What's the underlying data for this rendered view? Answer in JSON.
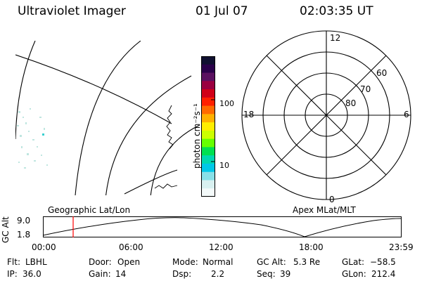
{
  "header": {
    "instrument": "Ultraviolet Imager",
    "date": "01 Jul 07",
    "time": "02:03:35 UT"
  },
  "colorbar": {
    "unit_label": "photon cm⁻²s⁻¹",
    "ticks": [
      {
        "label": "100",
        "value": 100
      },
      {
        "label": "10",
        "value": 10
      }
    ],
    "colors": [
      "#101030",
      "#2a004a",
      "#5a1060",
      "#9a0040",
      "#d00018",
      "#ff2000",
      "#ff6a00",
      "#ffb000",
      "#ffee00",
      "#ccff00",
      "#66ff00",
      "#00e050",
      "#00d8b0",
      "#00c8e8",
      "#88e0e8",
      "#d8f0f0",
      "#f4fafa"
    ]
  },
  "polar_plot": {
    "mlt_labels": {
      "top": "12",
      "right": "6",
      "bottom": "0",
      "left": "18"
    },
    "lat_labels": [
      "60",
      "70",
      "80"
    ]
  },
  "timeline": {
    "left_label": "Geographic Lat/Lon",
    "right_label": "Apex  MLat/MLT",
    "axis_title": "GC Alt",
    "y_max_label": "9.0",
    "y_min_label": "1.8",
    "time_ticks": [
      "00:00",
      "06:00",
      "12:00",
      "18:00",
      "23:59"
    ],
    "marker_color": "#ff0000"
  },
  "status": {
    "flt": {
      "label": "Flt:",
      "value": "LBHL"
    },
    "ip": {
      "label": "IP:",
      "value": "36.0"
    },
    "door": {
      "label": "Door:",
      "value": "Open"
    },
    "gain": {
      "label": "Gain:",
      "value": "14"
    },
    "mode": {
      "label": "Mode:",
      "value": "Normal"
    },
    "dsp": {
      "label": "Dsp:",
      "value": "2.2"
    },
    "gc_alt": {
      "label": "GC Alt:",
      "value": "5.3 Re"
    },
    "seq": {
      "label": "Seq:",
      "value": "39"
    },
    "glat": {
      "label": "GLat:",
      "value": "−58.5"
    },
    "glon": {
      "label": "GLon:",
      "value": "212.4"
    }
  }
}
